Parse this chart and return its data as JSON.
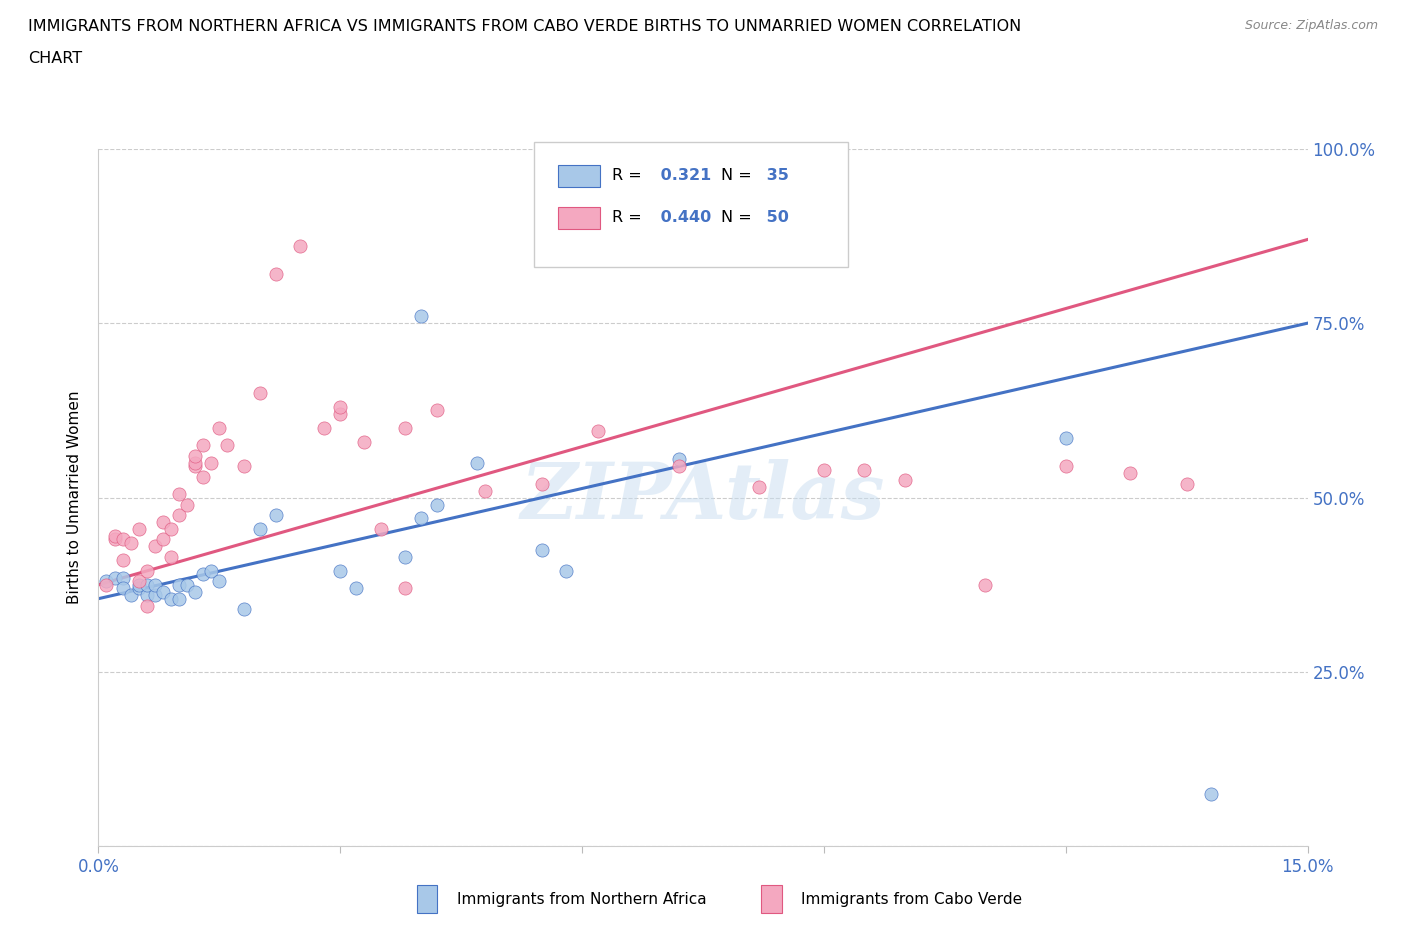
{
  "title_line1": "IMMIGRANTS FROM NORTHERN AFRICA VS IMMIGRANTS FROM CABO VERDE BIRTHS TO UNMARRIED WOMEN CORRELATION",
  "title_line2": "CHART",
  "source_text": "Source: ZipAtlas.com",
  "ylabel": "Births to Unmarried Women",
  "x_min": 0.0,
  "x_max": 0.15,
  "y_min": 0.0,
  "y_max": 1.0,
  "x_tick_positions": [
    0.0,
    0.03,
    0.06,
    0.09,
    0.12,
    0.15
  ],
  "x_tick_labels": [
    "0.0%",
    "",
    "",
    "",
    "",
    "15.0%"
  ],
  "y_tick_positions": [
    0.0,
    0.25,
    0.5,
    0.75,
    1.0
  ],
  "y_tick_labels": [
    "",
    "25.0%",
    "50.0%",
    "75.0%",
    "100.0%"
  ],
  "color_blue": "#a8c8e8",
  "color_pink": "#f4a8c0",
  "line_color_blue": "#4472c4",
  "line_color_pink": "#e05880",
  "legend_R1": "0.321",
  "legend_N1": "35",
  "legend_R2": "0.440",
  "legend_N2": "50",
  "watermark": "ZIPAtlas",
  "blue_x": [
    0.001,
    0.002,
    0.003,
    0.003,
    0.004,
    0.005,
    0.005,
    0.006,
    0.006,
    0.007,
    0.007,
    0.008,
    0.009,
    0.01,
    0.01,
    0.011,
    0.012,
    0.013,
    0.014,
    0.015,
    0.018,
    0.02,
    0.022,
    0.03,
    0.032,
    0.038,
    0.04,
    0.042,
    0.047,
    0.055,
    0.058,
    0.072,
    0.04,
    0.12,
    0.138
  ],
  "blue_y": [
    0.38,
    0.385,
    0.385,
    0.37,
    0.36,
    0.37,
    0.375,
    0.36,
    0.375,
    0.36,
    0.375,
    0.365,
    0.355,
    0.375,
    0.355,
    0.375,
    0.365,
    0.39,
    0.395,
    0.38,
    0.34,
    0.455,
    0.475,
    0.395,
    0.37,
    0.415,
    0.47,
    0.49,
    0.55,
    0.425,
    0.395,
    0.555,
    0.76,
    0.585,
    0.075
  ],
  "pink_x": [
    0.001,
    0.002,
    0.002,
    0.003,
    0.003,
    0.004,
    0.005,
    0.005,
    0.006,
    0.006,
    0.007,
    0.008,
    0.008,
    0.009,
    0.009,
    0.01,
    0.01,
    0.011,
    0.012,
    0.012,
    0.012,
    0.013,
    0.013,
    0.014,
    0.015,
    0.016,
    0.018,
    0.02,
    0.022,
    0.025,
    0.028,
    0.03,
    0.033,
    0.035,
    0.042,
    0.048,
    0.055,
    0.062,
    0.072,
    0.082,
    0.09,
    0.095,
    0.1,
    0.11,
    0.12,
    0.128,
    0.135,
    0.03,
    0.038,
    0.038
  ],
  "pink_y": [
    0.375,
    0.44,
    0.445,
    0.41,
    0.44,
    0.435,
    0.455,
    0.38,
    0.395,
    0.345,
    0.43,
    0.44,
    0.465,
    0.415,
    0.455,
    0.475,
    0.505,
    0.49,
    0.545,
    0.55,
    0.56,
    0.575,
    0.53,
    0.55,
    0.6,
    0.575,
    0.545,
    0.65,
    0.82,
    0.86,
    0.6,
    0.62,
    0.58,
    0.455,
    0.625,
    0.51,
    0.52,
    0.595,
    0.545,
    0.515,
    0.54,
    0.54,
    0.525,
    0.375,
    0.545,
    0.535,
    0.52,
    0.63,
    0.37,
    0.6
  ]
}
